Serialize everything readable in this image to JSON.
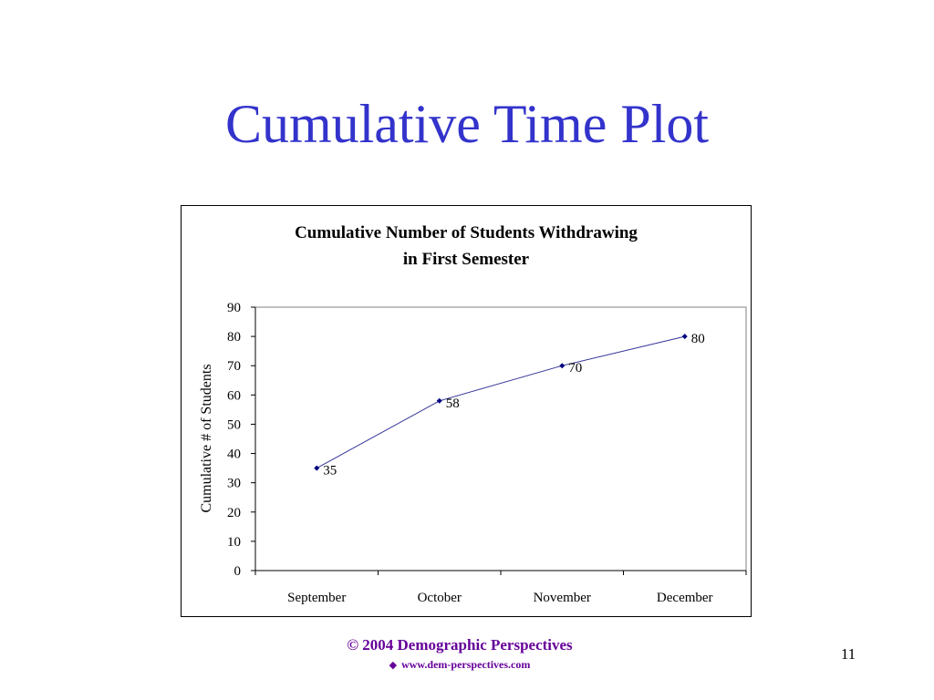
{
  "slide": {
    "title": "Cumulative Time Plot",
    "footer": {
      "copyright": "© 2004 Demographic Perspectives",
      "bullet": "◆",
      "url": "www.dem-perspectives.com"
    },
    "page_number": "11"
  },
  "colors": {
    "title": "#3333cc",
    "footer": "#660099",
    "series_line": "#333399",
    "series_marker": "#000080"
  },
  "chart_data": {
    "type": "line",
    "title_lines": [
      "Cumulative Number of Students Withdrawing",
      "in First Semester"
    ],
    "xlabel": "",
    "ylabel": "Cumulative # of Students",
    "categories": [
      "September",
      "October",
      "November",
      "December"
    ],
    "series": [
      {
        "values": [
          35,
          58,
          70,
          80
        ]
      }
    ],
    "ylim": [
      0,
      90
    ],
    "yticks": [
      0,
      10,
      20,
      30,
      40,
      50,
      60,
      70,
      80,
      90
    ],
    "data_labels": [
      "35",
      "58",
      "70",
      "80"
    ],
    "grid": false,
    "legend": "none",
    "marker": "diamond"
  }
}
